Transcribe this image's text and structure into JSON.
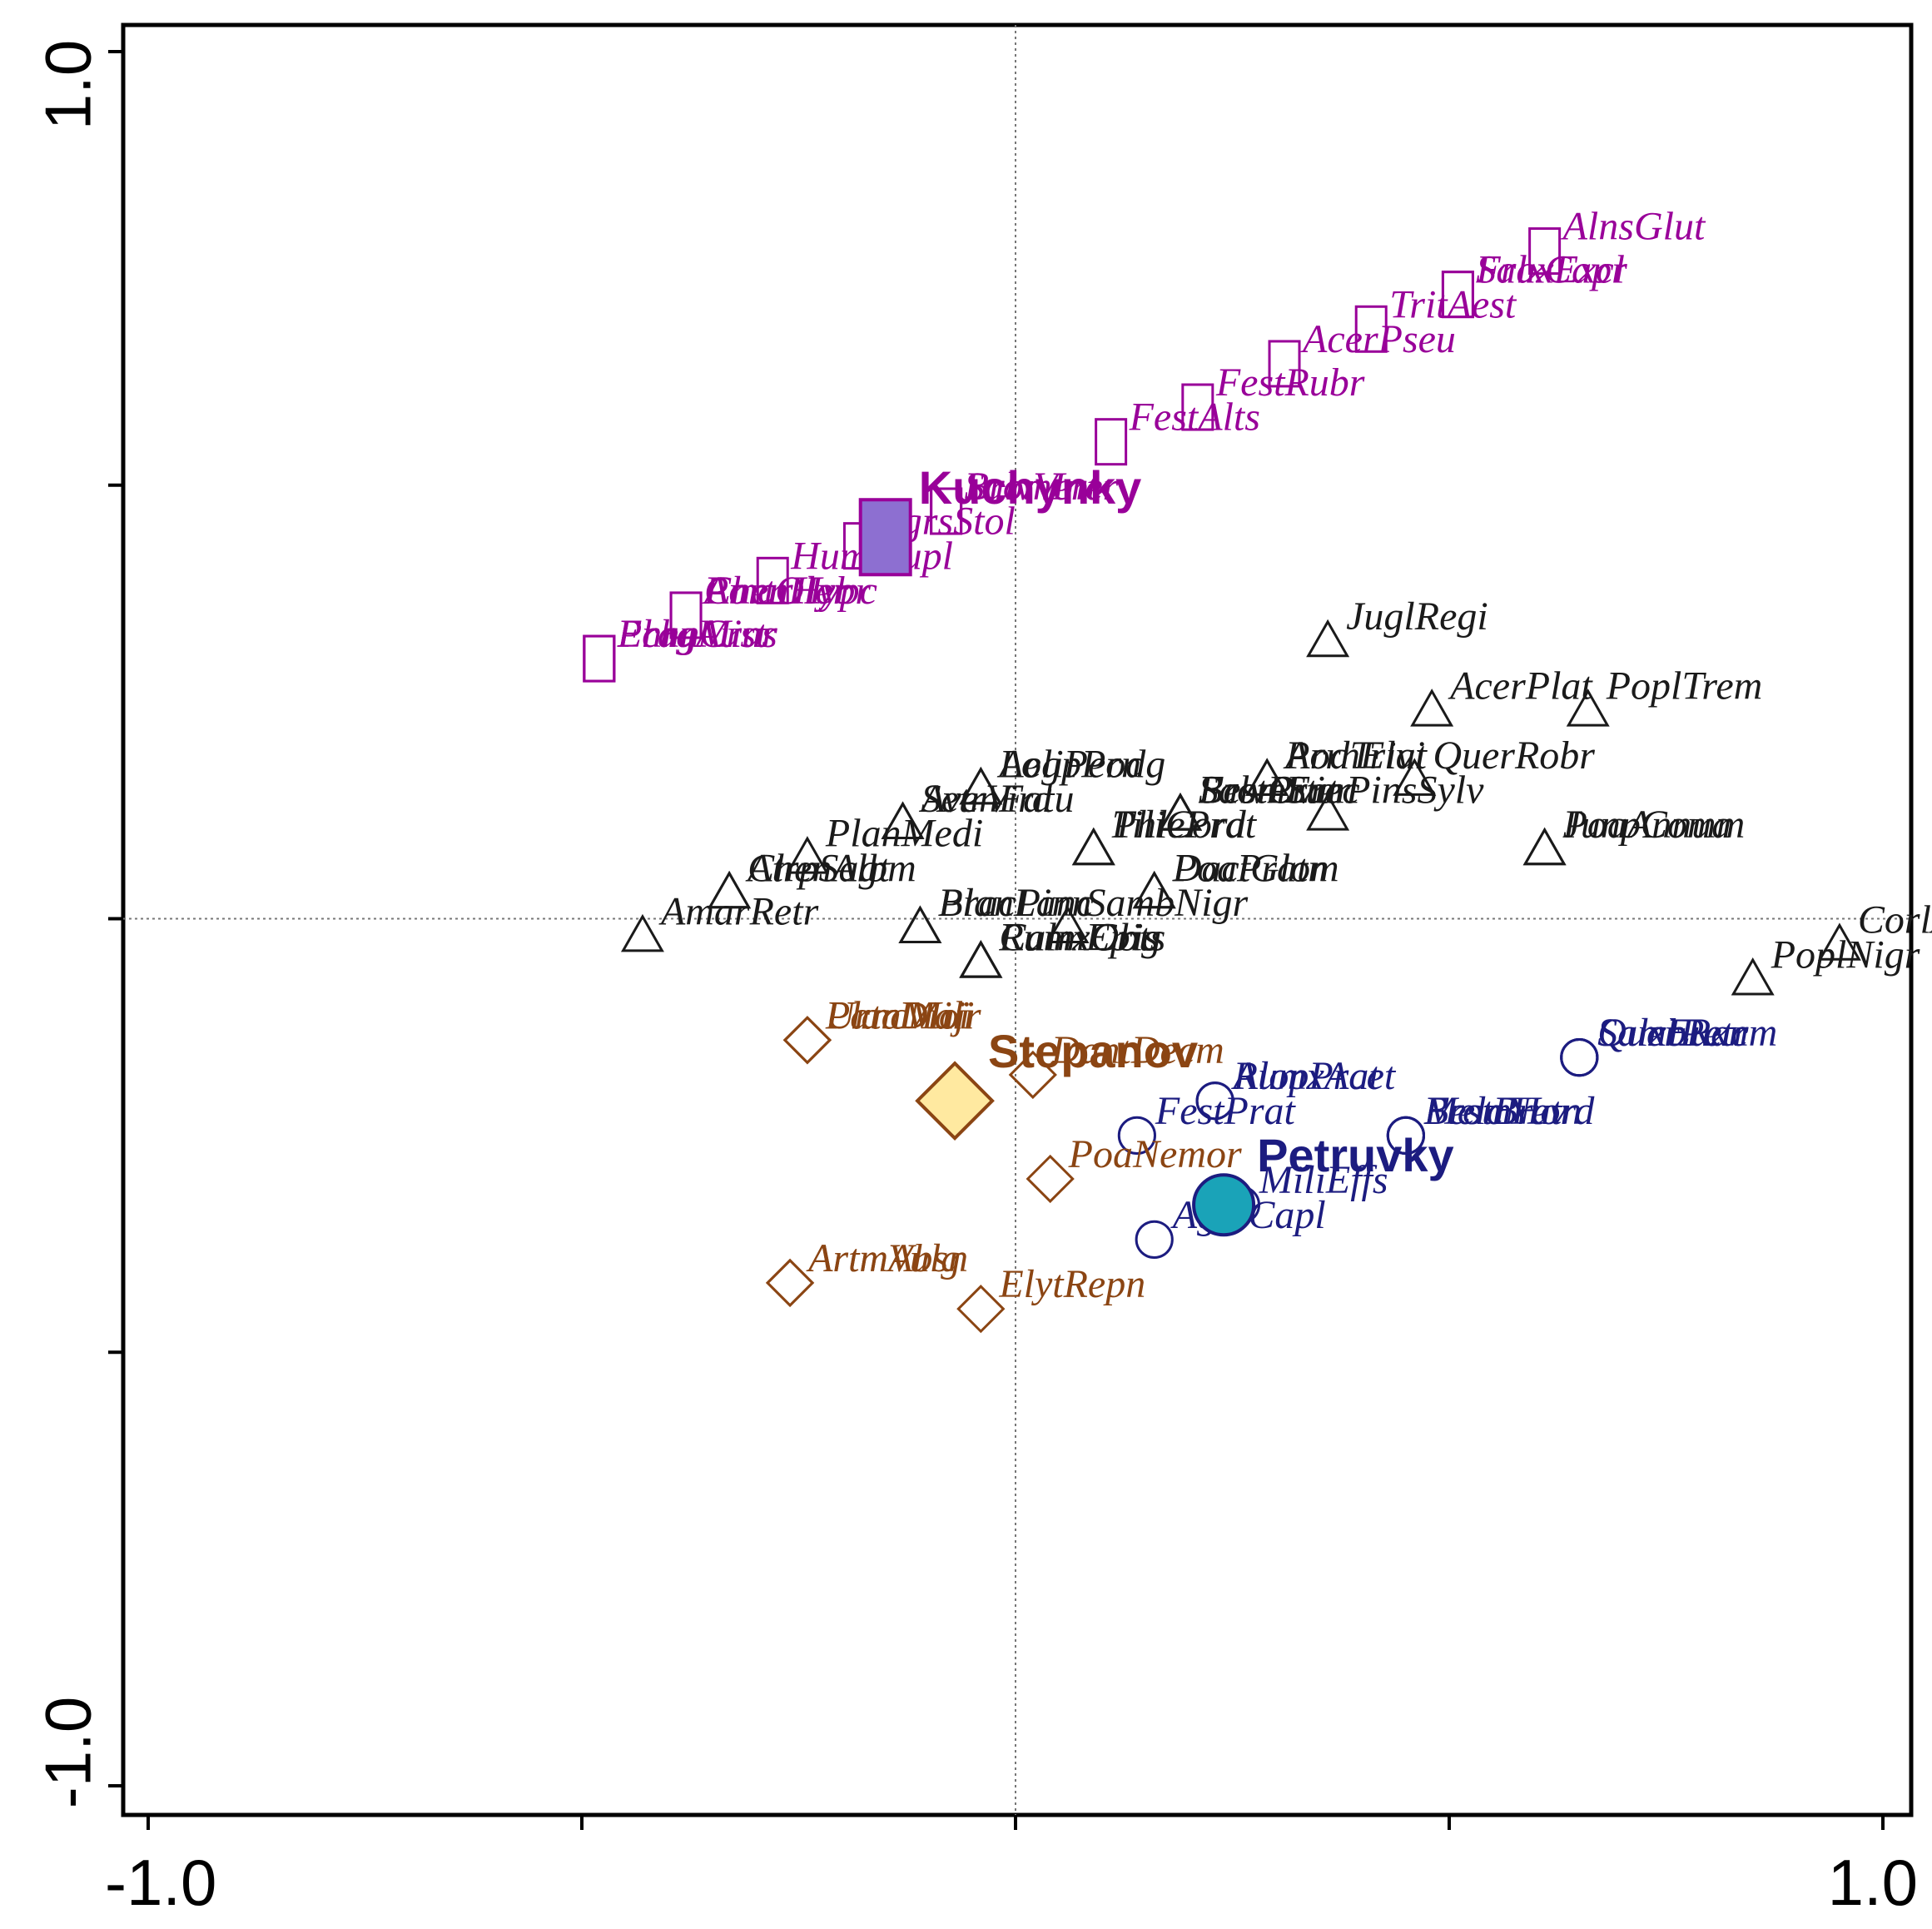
{
  "chart_data": {
    "type": "scatter",
    "title": "",
    "xlabel": "",
    "ylabel": "",
    "xlim": [
      -1.0,
      1.0
    ],
    "ylim": [
      -1.0,
      1.0
    ],
    "x_ticks": [
      -1.0,
      -0.5,
      0.0,
      0.5,
      1.0
    ],
    "y_ticks": [
      -1.0,
      -0.5,
      0.0,
      0.5,
      1.0
    ],
    "x_tick_labels": [
      "-1.0",
      "",
      "",
      "",
      "1.0"
    ],
    "y_tick_labels": [
      "-1.0",
      "",
      "",
      "",
      "1.0"
    ],
    "reference_lines": {
      "x0": true,
      "y0": true,
      "style": "dotted"
    },
    "groups": [
      {
        "name": "Kuchynky",
        "marker": "square",
        "color": "#990099",
        "fill": "#8d6fd1"
      },
      {
        "name": "Stepanov",
        "marker": "diamond",
        "color": "#8b4513",
        "fill": "#ffe9a0"
      },
      {
        "name": "Petruvky",
        "marker": "circle",
        "color": "#1c1c80",
        "fill": "#1aa3b8"
      },
      {
        "name": "general",
        "marker": "triangle",
        "color": "#1a1a1a"
      }
    ],
    "sites": [
      {
        "name": "Kuchynky",
        "group": "Kuchynky",
        "x": -0.15,
        "y": 0.44
      },
      {
        "name": "Stepanov",
        "group": "Stepanov",
        "x": -0.07,
        "y": -0.21
      },
      {
        "name": "Petruvky",
        "group": "Petruvky",
        "x": 0.24,
        "y": -0.33
      }
    ],
    "species": [
      {
        "name": "AlnsGlut",
        "group": "Kuchynky",
        "x": 0.61,
        "y": 0.77
      },
      {
        "name": "FraxExcl",
        "group": "Kuchynky",
        "x": 0.51,
        "y": 0.72
      },
      {
        "name": "SalxCapr",
        "group": "Kuchynky",
        "x": 0.51,
        "y": 0.72
      },
      {
        "name": "TritAest",
        "group": "Kuchynky",
        "x": 0.41,
        "y": 0.68
      },
      {
        "name": "AcerPseu",
        "group": "Kuchynky",
        "x": 0.31,
        "y": 0.64
      },
      {
        "name": "FestRubr",
        "group": "Kuchynky",
        "x": 0.21,
        "y": 0.59
      },
      {
        "name": "FestAlts",
        "group": "Kuchynky",
        "x": 0.11,
        "y": 0.55
      },
      {
        "name": "BromIner",
        "group": "Kuchynky",
        "x": -0.08,
        "y": 0.47
      },
      {
        "name": "SalvVert",
        "group": "Kuchynky",
        "x": -0.08,
        "y": 0.47
      },
      {
        "name": "AgrsStol",
        "group": "Kuchynky",
        "x": -0.18,
        "y": 0.43
      },
      {
        "name": "HumlLupl",
        "group": "Kuchynky",
        "x": -0.28,
        "y": 0.39
      },
      {
        "name": "ChenHybr",
        "group": "Kuchynky",
        "x": -0.38,
        "y": 0.35
      },
      {
        "name": "PortOler",
        "group": "Kuchynky",
        "x": -0.38,
        "y": 0.35
      },
      {
        "name": "AmarHypc",
        "group": "Kuchynky",
        "x": -0.38,
        "y": 0.35
      },
      {
        "name": "EragMinr",
        "group": "Kuchynky",
        "x": -0.48,
        "y": 0.3
      },
      {
        "name": "PhrgAust",
        "group": "Kuchynky",
        "x": -0.48,
        "y": 0.3
      },
      {
        "name": "EchnCrus",
        "group": "Kuchynky",
        "x": -0.48,
        "y": 0.3
      },
      {
        "name": "JuglRegi",
        "group": "general",
        "x": 0.36,
        "y": 0.32
      },
      {
        "name": "AcerPlat",
        "group": "general",
        "x": 0.48,
        "y": 0.24
      },
      {
        "name": "PoplTrem",
        "group": "general",
        "x": 0.66,
        "y": 0.24
      },
      {
        "name": "QuerRobr",
        "group": "general",
        "x": 0.46,
        "y": 0.16
      },
      {
        "name": "PinsSylv",
        "group": "general",
        "x": 0.36,
        "y": 0.12
      },
      {
        "name": "JunpComm",
        "group": "general",
        "x": 0.61,
        "y": 0.08
      },
      {
        "name": "PoaAnnua",
        "group": "general",
        "x": 0.61,
        "y": 0.08
      },
      {
        "name": "CorlAvel",
        "group": "general",
        "x": 0.95,
        "y": -0.03
      },
      {
        "name": "PoplNigr",
        "group": "general",
        "x": 0.85,
        "y": -0.07
      },
      {
        "name": "ArrhElat",
        "group": "general",
        "x": 0.29,
        "y": 0.16
      },
      {
        "name": "PoaTrivi",
        "group": "general",
        "x": 0.29,
        "y": 0.16
      },
      {
        "name": "BromErec",
        "group": "general",
        "x": 0.19,
        "y": 0.12
      },
      {
        "name": "SalvPrat",
        "group": "general",
        "x": 0.19,
        "y": 0.12
      },
      {
        "name": "BromSter",
        "group": "general",
        "x": 0.19,
        "y": 0.12
      },
      {
        "name": "FestOvin",
        "group": "general",
        "x": 0.19,
        "y": 0.12
      },
      {
        "name": "DactGlom",
        "group": "general",
        "x": 0.16,
        "y": 0.03
      },
      {
        "name": "PoaPratn",
        "group": "general",
        "x": 0.16,
        "y": 0.03
      },
      {
        "name": "TiliCord",
        "group": "general",
        "x": 0.09,
        "y": 0.08
      },
      {
        "name": "PhlePrat",
        "group": "general",
        "x": 0.09,
        "y": 0.08
      },
      {
        "name": "SambNigr",
        "group": "general",
        "x": 0.06,
        "y": -0.01
      },
      {
        "name": "CalmEpig",
        "group": "general",
        "x": -0.04,
        "y": -0.05
      },
      {
        "name": "RumxObts",
        "group": "general",
        "x": -0.04,
        "y": -0.05
      },
      {
        "name": "RumxCris",
        "group": "general",
        "x": -0.04,
        "y": -0.05
      },
      {
        "name": "LoliPern",
        "group": "general",
        "x": -0.04,
        "y": 0.15
      },
      {
        "name": "AegpPodg",
        "group": "general",
        "x": -0.04,
        "y": 0.15
      },
      {
        "name": "SetrVird",
        "group": "general",
        "x": -0.13,
        "y": 0.11
      },
      {
        "name": "AvenFatu",
        "group": "general",
        "x": -0.13,
        "y": 0.11
      },
      {
        "name": "BracPinn",
        "group": "general",
        "x": -0.11,
        "y": -0.01
      },
      {
        "name": "PlanLanc",
        "group": "general",
        "x": -0.11,
        "y": -0.01
      },
      {
        "name": "PlanMedi",
        "group": "general",
        "x": -0.24,
        "y": 0.07
      },
      {
        "name": "AtrpSagt",
        "group": "general",
        "x": -0.33,
        "y": 0.03
      },
      {
        "name": "ChenAlbm",
        "group": "general",
        "x": -0.33,
        "y": 0.03
      },
      {
        "name": "AmarRetr",
        "group": "general",
        "x": -0.43,
        "y": -0.02
      },
      {
        "name": "PlanMajr",
        "group": "Stepanov",
        "x": -0.24,
        "y": -0.14
      },
      {
        "name": "UrtcDioi",
        "group": "Stepanov",
        "x": -0.24,
        "y": -0.14
      },
      {
        "name": "PancMili",
        "group": "Stepanov",
        "x": -0.24,
        "y": -0.14
      },
      {
        "name": "DantDecm",
        "group": "Stepanov",
        "x": 0.02,
        "y": -0.18
      },
      {
        "name": "PoaNemor",
        "group": "Stepanov",
        "x": 0.04,
        "y": -0.3
      },
      {
        "name": "ArtmAbsn",
        "group": "Stepanov",
        "x": -0.26,
        "y": -0.42
      },
      {
        "name": "ArtmVulg",
        "group": "Stepanov",
        "x": -0.26,
        "y": -0.42
      },
      {
        "name": "ElytRepn",
        "group": "Stepanov",
        "x": -0.04,
        "y": -0.45
      },
      {
        "name": "QuerPetr",
        "group": "Petruvky",
        "x": 0.65,
        "y": -0.16
      },
      {
        "name": "SambRacm",
        "group": "Petruvky",
        "x": 0.65,
        "y": -0.16
      },
      {
        "name": "SalxEuxn",
        "group": "Petruvky",
        "x": 0.65,
        "y": -0.16
      },
      {
        "name": "AlopPrat",
        "group": "Petruvky",
        "x": 0.23,
        "y": -0.21
      },
      {
        "name": "RumxAcet",
        "group": "Petruvky",
        "x": 0.23,
        "y": -0.21
      },
      {
        "name": "MelcNutn",
        "group": "Petruvky",
        "x": 0.45,
        "y": -0.25
      },
      {
        "name": "BromHord",
        "group": "Petruvky",
        "x": 0.45,
        "y": -0.25
      },
      {
        "name": "FestBrev",
        "group": "Petruvky",
        "x": 0.45,
        "y": -0.25
      },
      {
        "name": "FestPrat",
        "group": "Petruvky",
        "x": 0.14,
        "y": -0.25
      },
      {
        "name": "AgrsCapl",
        "group": "Petruvky",
        "x": 0.16,
        "y": -0.37
      },
      {
        "name": "MiliEffs",
        "group": "Petruvky",
        "x": 0.26,
        "y": -0.33
      }
    ]
  }
}
